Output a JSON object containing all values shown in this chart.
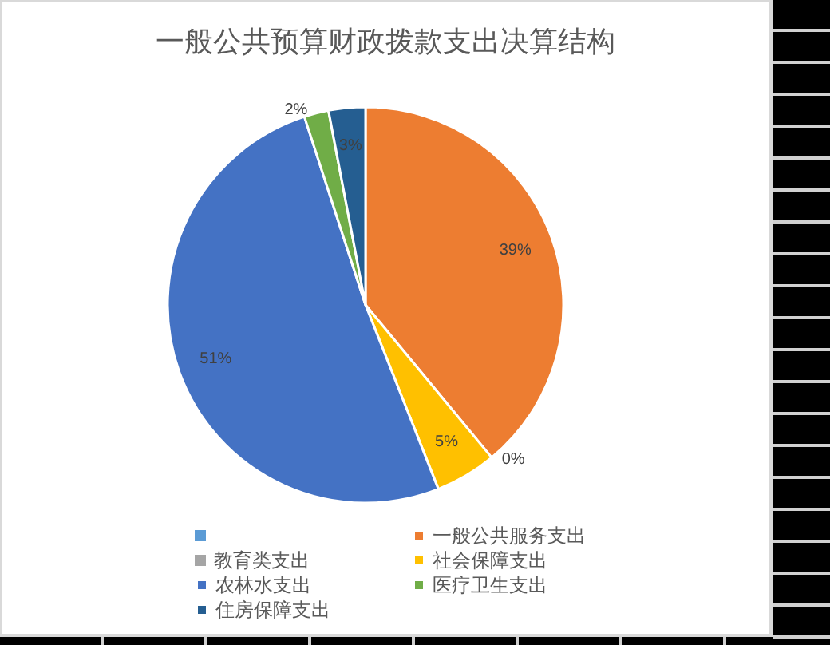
{
  "chart_data": {
    "type": "pie",
    "title": "一般公共预算财政拨款支出决算结构",
    "categories": [
      null,
      "一般公共服务支出",
      "教育类支出",
      "社会保障支出",
      "农林水支出",
      "医疗卫生支出",
      "住房保障支出"
    ],
    "values": [
      0,
      39,
      0,
      5,
      51,
      2,
      3
    ],
    "colors": [
      "#5b9bd5",
      "#ed7d31",
      "#a5a5a5",
      "#ffc000",
      "#4472c4",
      "#70ad47",
      "#255e91"
    ],
    "value_labels": [
      null,
      "39%",
      "0%",
      "5%",
      "51%",
      "2%",
      "3%"
    ],
    "legend": "bottom"
  }
}
